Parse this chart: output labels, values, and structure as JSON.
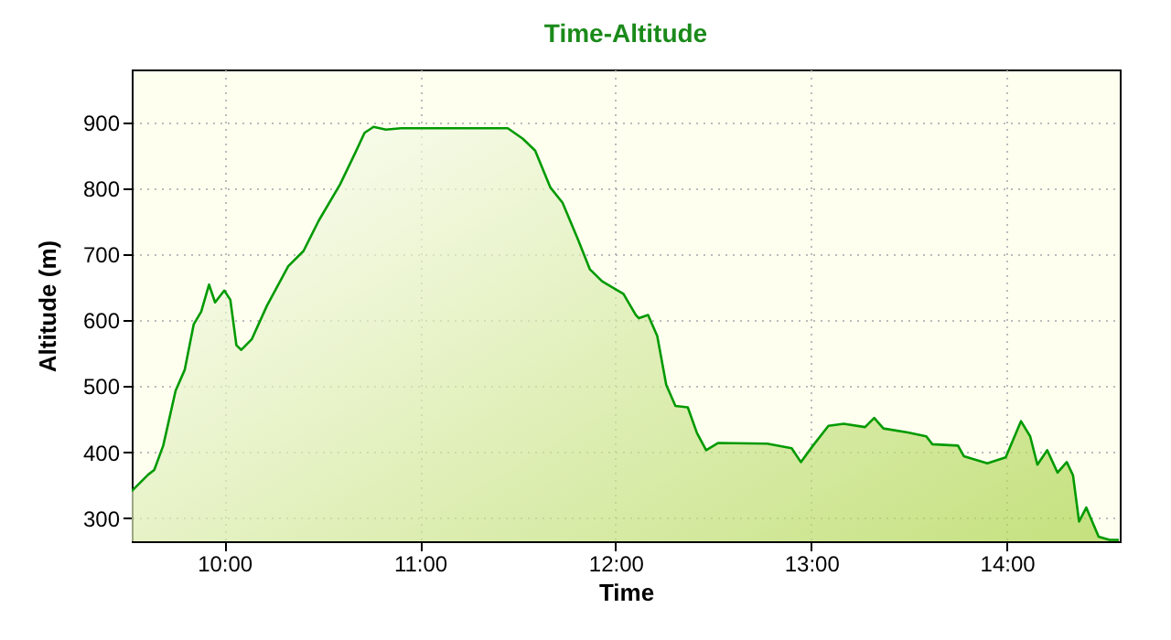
{
  "chart_data": {
    "type": "area",
    "title": "Time-Altitude",
    "xlabel": "Time",
    "ylabel": "Altitude (m)",
    "x": [
      9.527,
      9.611,
      9.642,
      9.688,
      9.751,
      9.798,
      9.844,
      9.882,
      9.922,
      9.953,
      10.0,
      10.031,
      10.062,
      10.087,
      10.14,
      10.218,
      10.327,
      10.405,
      10.483,
      10.592,
      10.67,
      10.717,
      10.763,
      10.826,
      10.903,
      11.449,
      11.526,
      11.589,
      11.667,
      11.729,
      11.807,
      11.869,
      11.931,
      11.994,
      12.04,
      12.103,
      12.119,
      12.166,
      12.213,
      12.259,
      12.306,
      12.369,
      12.416,
      12.463,
      12.525,
      12.775,
      12.9,
      12.947,
      13.009,
      13.088,
      13.166,
      13.275,
      13.322,
      13.369,
      13.494,
      13.588,
      13.619,
      13.75,
      13.78,
      13.9,
      13.994,
      14.072,
      14.119,
      14.156,
      14.206,
      14.259,
      14.306,
      14.338,
      14.369,
      14.406,
      14.469,
      14.525,
      14.572
    ],
    "series": [
      {
        "color": "#009a00",
        "values": [
          341,
          366,
          373,
          410,
          493,
          525,
          594,
          613,
          654,
          627,
          645,
          631,
          562,
          555,
          571,
          622,
          682,
          705,
          751,
          806,
          854,
          884,
          893,
          889,
          891,
          891,
          875,
          857,
          801,
          778,
          723,
          677,
          659,
          648,
          640,
          608,
          603,
          608,
          576,
          502,
          470,
          468,
          429,
          403,
          414,
          413,
          406,
          385,
          410,
          440,
          443,
          438,
          452,
          436,
          430,
          424,
          412,
          410,
          394,
          383,
          392,
          447,
          424,
          381,
          403,
          369,
          385,
          365,
          295,
          316,
          272,
          267,
          267
        ]
      }
    ],
    "xlim": [
      9.527,
      14.577
    ],
    "ylim": [
      265,
      980
    ],
    "xticks": [
      {
        "value": 10,
        "label": "10:00"
      },
      {
        "value": 11,
        "label": "11:00"
      },
      {
        "value": 12,
        "label": "12:00"
      },
      {
        "value": 13,
        "label": "13:00"
      },
      {
        "value": 14,
        "label": "14:00"
      }
    ],
    "yticks": [
      300,
      400,
      500,
      600,
      700,
      800,
      900
    ],
    "grid": true
  }
}
